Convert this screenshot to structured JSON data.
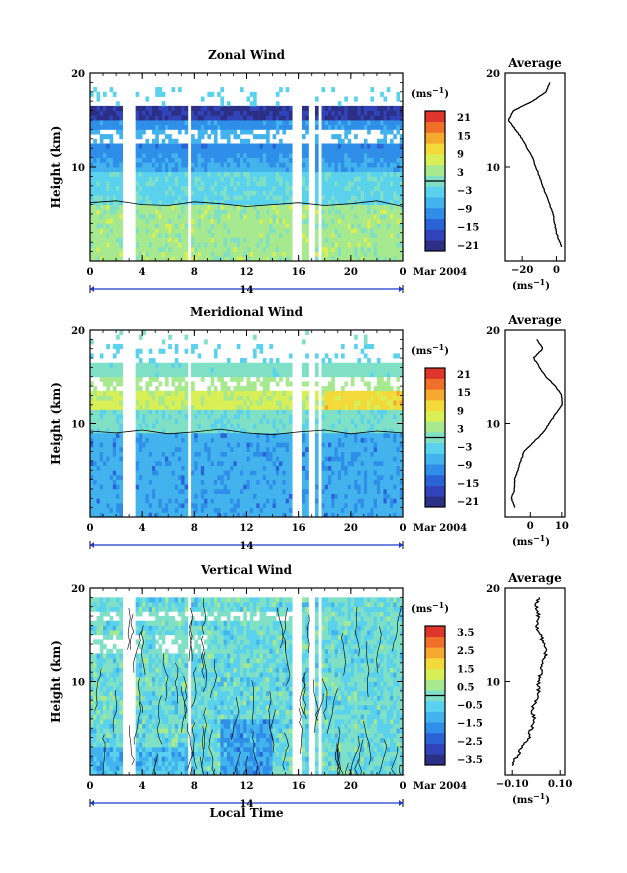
{
  "colors": [
    "#2b2f86",
    "#3143b8",
    "#2a63d8",
    "#2f8ee8",
    "#43b3ee",
    "#5ad2ee",
    "#7fe0c6",
    "#a6e98e",
    "#d8ef56",
    "#f4d93a",
    "#f6a92f",
    "#f0702a",
    "#e0352c"
  ],
  "date_label": "Mar 2004",
  "day_label": "14",
  "x_axis_label": "Local Time",
  "y_axis_label": "Height (km)",
  "unit_label": "(ms",
  "unit_exp": "−1",
  "chart_data": [
    {
      "type": "heatmap",
      "title": "Zonal Wind",
      "ylabel": "Height (km)",
      "xticks": [
        "0",
        "4",
        "8",
        "12",
        "16",
        "20",
        "0"
      ],
      "yticks": [
        "10",
        "20"
      ],
      "ylim": [
        0,
        20
      ],
      "colorbar": {
        "ticks": [
          "21",
          "15",
          "9",
          "3",
          "−3",
          "−9",
          "−15",
          "−21"
        ],
        "range": [
          -24,
          24
        ]
      },
      "profile": {
        "title": "Average",
        "xticks": [
          "−20",
          "0"
        ],
        "xlim": [
          -30,
          5
        ],
        "heights": [
          1.5,
          2,
          3,
          4,
          5,
          6,
          7,
          8,
          9,
          10,
          11,
          12,
          13,
          14,
          15,
          16,
          17,
          18,
          19
        ],
        "values": [
          3,
          2,
          0,
          -1,
          -2,
          -4,
          -6,
          -8,
          -10,
          -12,
          -14,
          -17,
          -20,
          -24,
          -28,
          -25,
          -14,
          -6,
          -4
        ]
      }
    },
    {
      "type": "heatmap",
      "title": "Meridional Wind",
      "ylabel": "Height (km)",
      "xticks": [
        "0",
        "4",
        "8",
        "12",
        "16",
        "20",
        "0"
      ],
      "yticks": [
        "10",
        "20"
      ],
      "ylim": [
        0,
        20
      ],
      "colorbar": {
        "ticks": [
          "21",
          "15",
          "9",
          "3",
          "−3",
          "−9",
          "−15",
          "−21"
        ],
        "range": [
          -24,
          24
        ]
      },
      "profile": {
        "title": "Average",
        "xticks": [
          "0",
          "10"
        ],
        "xlim": [
          -8,
          11
        ],
        "heights": [
          1,
          2,
          3,
          4,
          5,
          6,
          7,
          8,
          9,
          10,
          11,
          12,
          13,
          14,
          15,
          16,
          17,
          18,
          19
        ],
        "values": [
          -5,
          -6,
          -5,
          -5,
          -4,
          -3,
          -2,
          1,
          4,
          6,
          8,
          10,
          10,
          8,
          5,
          3,
          1,
          4,
          2
        ]
      }
    },
    {
      "type": "heatmap",
      "title": "Vertical Wind",
      "ylabel": "Height (km)",
      "xlabel": "Local Time",
      "xticks": [
        "0",
        "4",
        "8",
        "12",
        "16",
        "20",
        "0"
      ],
      "yticks": [
        "10",
        "20"
      ],
      "ylim": [
        0,
        20
      ],
      "colorbar": {
        "ticks": [
          "3.5",
          "2.5",
          "1.5",
          "0.5",
          "−0.5",
          "−1.5",
          "−2.5",
          "−3.5"
        ],
        "range": [
          -4,
          4
        ]
      },
      "profile": {
        "title": "Average",
        "xticks": [
          "−0.10",
          "0.10"
        ],
        "xlim": [
          -0.13,
          0.12
        ],
        "heights": [
          1,
          2,
          3,
          4,
          5,
          6,
          7,
          8,
          9,
          10,
          11,
          12,
          13,
          14,
          15,
          16,
          17,
          18,
          19
        ],
        "values": [
          -0.1,
          -0.08,
          -0.06,
          -0.03,
          -0.02,
          -0.01,
          -0.02,
          0.0,
          0.01,
          0.01,
          0.02,
          0.03,
          0.04,
          0.03,
          0.02,
          0.0,
          0.01,
          0.0,
          0.01
        ]
      }
    }
  ]
}
